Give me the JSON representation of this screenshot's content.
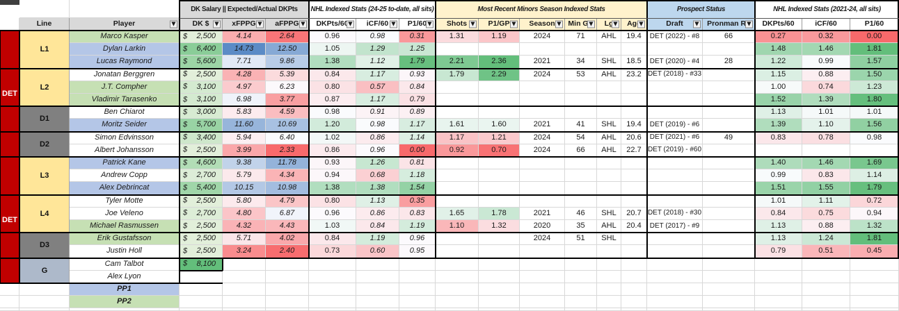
{
  "meta": {
    "currency_symbol": "$",
    "filter_glyph": "▼",
    "team_abbr": "DET"
  },
  "colors": {
    "team_red": "#c00000",
    "line_yellow": "#ffe699",
    "defense_gray": "#808080",
    "goalie_bluegray": "#adb9ca",
    "player_blue": "#b4c6e7",
    "player_green": "#c6e0b4",
    "header_gray": "#d9d9d9",
    "group_yellow": "#fff2cc",
    "group_blue": "#bdd7ee",
    "scale_red": "#f8696b",
    "scale_white": "#fcfcff",
    "scale_green": "#63be7b",
    "scale_blue": "#5a8ac6",
    "dk_low": "#e2efda",
    "dk_high": "#63be7b",
    "top_green_tick": "#26a049",
    "top_dark_corner": "#3f3f3f"
  },
  "scales": {
    "fppg": {
      "min": 2.3,
      "mid": 6.3,
      "max": 14.8,
      "low": "#f8696b",
      "midc": "#fcfcff",
      "high": "#5a8ac6"
    },
    "nhl": {
      "min": 0.0,
      "mid": 0.97,
      "max": 1.81,
      "low": "#f8696b",
      "midc": "#fcfcff",
      "high": "#63be7b"
    },
    "minors": {
      "min": 0.65,
      "mid": 1.5,
      "max": 2.36,
      "low": "#f8696b",
      "midc": "#fcfcff",
      "high": "#63be7b"
    },
    "dk": {
      "min": 2500,
      "max": 8100,
      "low": "#e2efda",
      "high": "#63be7b"
    }
  },
  "header": {
    "group_headers": [
      {
        "id": "dk-salary",
        "label": "DK Salary || Expected/Actual DKPts",
        "bg": "#d9d9d9",
        "italic": false,
        "cols": [
          3,
          5
        ]
      },
      {
        "id": "nhl-current",
        "label": "NHL Indexed Stats (24-25 to-date, all sits)",
        "bg": "#ffffff",
        "italic": true,
        "cols": [
          6,
          8
        ]
      },
      {
        "id": "minors",
        "label": "Most Recent Minors Season Indexed Stats",
        "bg": "#fff2cc",
        "italic": true,
        "cols": [
          9,
          14
        ]
      },
      {
        "id": "prospect",
        "label": "Prospect Status",
        "bg": "#bdd7ee",
        "italic": true,
        "cols": [
          15,
          16
        ]
      },
      {
        "id": "nhl-past",
        "label": "NHL Indexed Stats (2021-24, all sits)",
        "bg": "#ffffff",
        "italic": true,
        "cols": [
          17,
          19
        ]
      }
    ],
    "columns": [
      {
        "key": "team",
        "label": "",
        "bg": "#ffffff",
        "filter": false
      },
      {
        "key": "line",
        "label": "Line",
        "bg": "#d9d9d9",
        "filter": false
      },
      {
        "key": "player",
        "label": "Player",
        "bg": "#d9d9d9",
        "filter": true
      },
      {
        "key": "dk",
        "label": "DK $",
        "bg": "#d9d9d9",
        "filter": true
      },
      {
        "key": "xfppg",
        "label": "xFPPG",
        "bg": "#d9d9d9",
        "filter": true
      },
      {
        "key": "afppg",
        "label": "aFPPG",
        "bg": "#d9d9d9",
        "filter": true
      },
      {
        "key": "dkpts60a",
        "label": "DKPts/60",
        "bg": "#ffffff",
        "filter": true
      },
      {
        "key": "icf60a",
        "label": "iCF/60",
        "bg": "#ffffff",
        "filter": true
      },
      {
        "key": "p160a",
        "label": "P1/60",
        "bg": "#ffffff",
        "filter": true
      },
      {
        "key": "shots",
        "label": "Shots",
        "bg": "#fff2cc",
        "filter": true
      },
      {
        "key": "p1gp",
        "label": "P1/GP",
        "bg": "#fff2cc",
        "filter": true
      },
      {
        "key": "season",
        "label": "Season",
        "bg": "#fff2cc",
        "filter": true
      },
      {
        "key": "mingp",
        "label": "Min GP",
        "bg": "#fff2cc",
        "filter": true
      },
      {
        "key": "lg",
        "label": "Lg",
        "bg": "#fff2cc",
        "filter": true
      },
      {
        "key": "age",
        "label": "Age",
        "bg": "#fff2cc",
        "filter": true
      },
      {
        "key": "draft",
        "label": "Draft",
        "bg": "#bdd7ee",
        "filter": true
      },
      {
        "key": "pronman",
        "label": "Pronman Rk",
        "bg": "#bdd7ee",
        "filter": true
      },
      {
        "key": "dkpts60b",
        "label": "DKPts/60",
        "bg": "#ffffff",
        "filter": false
      },
      {
        "key": "icf60b",
        "label": "iCF/60",
        "bg": "#ffffff",
        "filter": false
      },
      {
        "key": "p160b",
        "label": "P1/60",
        "bg": "#ffffff",
        "filter": false
      }
    ]
  },
  "team_blocks": [
    {
      "label": "DET",
      "rows": [
        0,
        9
      ]
    },
    {
      "label": "DET",
      "rows": [
        10,
        19
      ]
    }
  ],
  "line_groups": [
    {
      "label": "L1",
      "kind": "forward",
      "rows": [
        0,
        2
      ]
    },
    {
      "label": "L2",
      "kind": "forward",
      "rows": [
        3,
        5
      ]
    },
    {
      "label": "D1",
      "kind": "defense",
      "rows": [
        6,
        7
      ]
    },
    {
      "label": "D2",
      "kind": "defense",
      "rows": [
        8,
        9
      ]
    },
    {
      "label": "L3",
      "kind": "forward",
      "rows": [
        10,
        12
      ]
    },
    {
      "label": "L4",
      "kind": "forward",
      "rows": [
        13,
        15
      ]
    },
    {
      "label": "D3",
      "kind": "defense",
      "rows": [
        16,
        17
      ]
    },
    {
      "label": "G",
      "kind": "goalie",
      "rows": [
        18,
        19
      ]
    }
  ],
  "rows": [
    {
      "player": "Marco Kasper",
      "fill": "green",
      "dk": "2,500",
      "xfppg": "4.14",
      "afppg": "2.64",
      "dkpts60a": "0.96",
      "icf60a": "0.98",
      "p160a": "0.31",
      "shots": "1.31",
      "p1gp": "1.19",
      "season": "2024",
      "mingp": "71",
      "lg": "AHL",
      "age": "19.4",
      "draft": "DET (2022) - #8",
      "pronman": "66",
      "dkpts60b": "0.27",
      "icf60b": "0.32",
      "p160b": "0.00"
    },
    {
      "player": "Dylan Larkin",
      "fill": "blue",
      "dk": "6,400",
      "xfppg": "14.73",
      "afppg": "12.50",
      "dkpts60a": "1.05",
      "icf60a": "1.29",
      "p160a": "1.25",
      "shots": "",
      "p1gp": "",
      "season": "",
      "mingp": "",
      "lg": "",
      "age": "",
      "draft": "",
      "pronman": "",
      "dkpts60b": "1.48",
      "icf60b": "1.46",
      "p160b": "1.81"
    },
    {
      "player": "Lucas Raymond",
      "fill": "blue",
      "dk": "5,600",
      "xfppg": "7.71",
      "afppg": "9.86",
      "dkpts60a": "1.38",
      "icf60a": "1.12",
      "p160a": "1.79",
      "shots": "2.21",
      "p1gp": "2.36",
      "season": "2021",
      "mingp": "34",
      "lg": "SHL",
      "age": "18.5",
      "draft": "DET (2020) - #4",
      "pronman": "28",
      "dkpts60b": "1.22",
      "icf60b": "0.99",
      "p160b": "1.57"
    },
    {
      "player": "Jonatan Berggren",
      "fill": "white",
      "dk": "2,500",
      "xfppg": "4.28",
      "afppg": "5.39",
      "dkpts60a": "0.84",
      "icf60a": "1.17",
      "p160a": "0.93",
      "shots": "1.79",
      "p1gp": "2.29",
      "season": "2024",
      "mingp": "53",
      "lg": "AHL",
      "age": "23.2",
      "draft": "DET (2018) - #33",
      "pronman": "",
      "dkpts60b": "1.15",
      "icf60b": "0.88",
      "p160b": "1.50"
    },
    {
      "player": "J.T. Compher",
      "fill": "green",
      "dk": "3,100",
      "xfppg": "4.97",
      "afppg": "6.23",
      "dkpts60a": "0.80",
      "icf60a": "0.57",
      "p160a": "0.84",
      "shots": "",
      "p1gp": "",
      "season": "",
      "mingp": "",
      "lg": "",
      "age": "",
      "draft": "",
      "pronman": "",
      "dkpts60b": "1.00",
      "icf60b": "0.74",
      "p160b": "1.23"
    },
    {
      "player": "Vladimir Tarasenko",
      "fill": "green",
      "dk": "3,100",
      "xfppg": "6.98",
      "afppg": "3.77",
      "dkpts60a": "0.87",
      "icf60a": "1.17",
      "p160a": "0.79",
      "shots": "",
      "p1gp": "",
      "season": "",
      "mingp": "",
      "lg": "",
      "age": "",
      "draft": "",
      "pronman": "",
      "dkpts60b": "1.52",
      "icf60b": "1.39",
      "p160b": "1.80"
    },
    {
      "player": "Ben Chiarot",
      "fill": "white",
      "dk": "3,000",
      "xfppg": "5.83",
      "afppg": "4.59",
      "dkpts60a": "0.98",
      "icf60a": "0.91",
      "p160a": "0.89",
      "shots": "",
      "p1gp": "",
      "season": "",
      "mingp": "",
      "lg": "",
      "age": "",
      "draft": "",
      "pronman": "",
      "dkpts60b": "1.13",
      "icf60b": "1.01",
      "p160b": "1.01"
    },
    {
      "player": "Moritz Seider",
      "fill": "blue",
      "dk": "5,700",
      "xfppg": "11.60",
      "afppg": "10.69",
      "dkpts60a": "1.20",
      "icf60a": "0.98",
      "p160a": "1.17",
      "shots": "1.61",
      "p1gp": "1.60",
      "season": "2021",
      "mingp": "41",
      "lg": "SHL",
      "age": "19.4",
      "draft": "DET (2019) - #6",
      "pronman": "",
      "dkpts60b": "1.39",
      "icf60b": "1.10",
      "p160b": "1.56"
    },
    {
      "player": "Simon Edvinsson",
      "fill": "white",
      "dk": "3,400",
      "xfppg": "5.94",
      "afppg": "6.40",
      "dkpts60a": "1.02",
      "icf60a": "0.86",
      "p160a": "1.14",
      "shots": "1.17",
      "p1gp": "1.21",
      "season": "2024",
      "mingp": "54",
      "lg": "AHL",
      "age": "20.6",
      "draft": "DET (2021) - #6",
      "pronman": "49",
      "dkpts60b": "0.83",
      "icf60b": "0.78",
      "p160b": "0.98"
    },
    {
      "player": "Albert Johansson",
      "fill": "white",
      "dk": "2,500",
      "xfppg": "3.99",
      "afppg": "2.33",
      "dkpts60a": "0.86",
      "icf60a": "0.96",
      "p160a": "0.00",
      "shots": "0.92",
      "p1gp": "0.70",
      "season": "2024",
      "mingp": "66",
      "lg": "AHL",
      "age": "22.7",
      "draft": "DET (2019) - #60",
      "pronman": "",
      "dkpts60b": "",
      "icf60b": "",
      "p160b": ""
    },
    {
      "player": "Patrick Kane",
      "fill": "blue",
      "dk": "4,600",
      "xfppg": "9.38",
      "afppg": "11.78",
      "dkpts60a": "0.93",
      "icf60a": "1.26",
      "p160a": "0.81",
      "shots": "",
      "p1gp": "",
      "season": "",
      "mingp": "",
      "lg": "",
      "age": "",
      "draft": "",
      "pronman": "",
      "dkpts60b": "1.40",
      "icf60b": "1.46",
      "p160b": "1.69"
    },
    {
      "player": "Andrew Copp",
      "fill": "white",
      "dk": "2,700",
      "xfppg": "5.79",
      "afppg": "4.34",
      "dkpts60a": "0.94",
      "icf60a": "0.68",
      "p160a": "1.18",
      "shots": "",
      "p1gp": "",
      "season": "",
      "mingp": "",
      "lg": "",
      "age": "",
      "draft": "",
      "pronman": "",
      "dkpts60b": "0.99",
      "icf60b": "0.83",
      "p160b": "1.14"
    },
    {
      "player": "Alex Debrincat",
      "fill": "blue",
      "dk": "5,400",
      "xfppg": "10.15",
      "afppg": "10.98",
      "dkpts60a": "1.38",
      "icf60a": "1.38",
      "p160a": "1.54",
      "shots": "",
      "p1gp": "",
      "season": "",
      "mingp": "",
      "lg": "",
      "age": "",
      "draft": "",
      "pronman": "",
      "dkpts60b": "1.51",
      "icf60b": "1.55",
      "p160b": "1.79"
    },
    {
      "player": "Tyler Motte",
      "fill": "white",
      "dk": "2,500",
      "xfppg": "5.80",
      "afppg": "4.79",
      "dkpts60a": "0.80",
      "icf60a": "1.13",
      "p160a": "0.35",
      "shots": "",
      "p1gp": "",
      "season": "",
      "mingp": "",
      "lg": "",
      "age": "",
      "draft": "",
      "pronman": "",
      "dkpts60b": "1.01",
      "icf60b": "1.11",
      "p160b": "0.72"
    },
    {
      "player": "Joe Veleno",
      "fill": "white",
      "dk": "2,700",
      "xfppg": "4.80",
      "afppg": "6.87",
      "dkpts60a": "0.96",
      "icf60a": "0.86",
      "p160a": "0.83",
      "shots": "1.65",
      "p1gp": "1.78",
      "season": "2021",
      "mingp": "46",
      "lg": "SHL",
      "age": "20.7",
      "draft": "DET (2018) - #30",
      "pronman": "",
      "dkpts60b": "0.84",
      "icf60b": "0.75",
      "p160b": "0.94"
    },
    {
      "player": "Michael Rasmussen",
      "fill": "green",
      "dk": "2,500",
      "xfppg": "4.32",
      "afppg": "4.43",
      "dkpts60a": "1.03",
      "icf60a": "0.84",
      "p160a": "1.19",
      "shots": "1.10",
      "p1gp": "1.32",
      "season": "2020",
      "mingp": "35",
      "lg": "AHL",
      "age": "20.4",
      "draft": "DET (2017) - #9",
      "pronman": "",
      "dkpts60b": "1.13",
      "icf60b": "0.88",
      "p160b": "1.32"
    },
    {
      "player": "Erik Gustafsson",
      "fill": "green",
      "dk": "2,500",
      "xfppg": "5.71",
      "afppg": "4.02",
      "dkpts60a": "0.84",
      "icf60a": "1.19",
      "p160a": "0.96",
      "shots": "",
      "p1gp": "",
      "season": "2024",
      "mingp": "51",
      "lg": "SHL",
      "age": "",
      "draft": "",
      "pronman": "",
      "dkpts60b": "1.13",
      "icf60b": "1.24",
      "p160b": "1.81"
    },
    {
      "player": "Justin Holl",
      "fill": "white",
      "dk": "2,500",
      "xfppg": "3.24",
      "afppg": "2.40",
      "dkpts60a": "0.73",
      "icf60a": "0.60",
      "p160a": "0.95",
      "shots": "",
      "p1gp": "",
      "season": "",
      "mingp": "",
      "lg": "",
      "age": "",
      "draft": "",
      "pronman": "",
      "dkpts60b": "0.79",
      "icf60b": "0.51",
      "p160b": "0.45"
    },
    {
      "player": "Cam Talbot",
      "fill": "white",
      "dk": "8,100",
      "xfppg": "",
      "afppg": "",
      "dkpts60a": "",
      "icf60a": "",
      "p160a": "",
      "shots": "",
      "p1gp": "",
      "season": "",
      "mingp": "",
      "lg": "",
      "age": "",
      "draft": "",
      "pronman": "",
      "dkpts60b": "",
      "icf60b": "",
      "p160b": ""
    },
    {
      "player": "Alex Lyon",
      "fill": "white",
      "dk": "",
      "xfppg": "",
      "afppg": "",
      "dkpts60a": "",
      "icf60a": "",
      "p160a": "",
      "shots": "",
      "p1gp": "",
      "season": "",
      "mingp": "",
      "lg": "",
      "age": "",
      "draft": "",
      "pronman": "",
      "dkpts60b": "",
      "icf60b": "",
      "p160b": ""
    },
    {
      "player": "PP1",
      "fill": "blue",
      "special": true,
      "dk": "",
      "xfppg": "",
      "afppg": "",
      "dkpts60a": "",
      "icf60a": "",
      "p160a": "",
      "shots": "",
      "p1gp": "",
      "season": "",
      "mingp": "",
      "lg": "",
      "age": "",
      "draft": "",
      "pronman": "",
      "dkpts60b": "",
      "icf60b": "",
      "p160b": ""
    },
    {
      "player": "PP2",
      "fill": "green",
      "special": true,
      "dk": "",
      "xfppg": "",
      "afppg": "",
      "dkpts60a": "",
      "icf60a": "",
      "p160a": "",
      "shots": "",
      "p1gp": "",
      "season": "",
      "mingp": "",
      "lg": "",
      "age": "",
      "draft": "",
      "pronman": "",
      "dkpts60b": "",
      "icf60b": "",
      "p160b": ""
    }
  ]
}
